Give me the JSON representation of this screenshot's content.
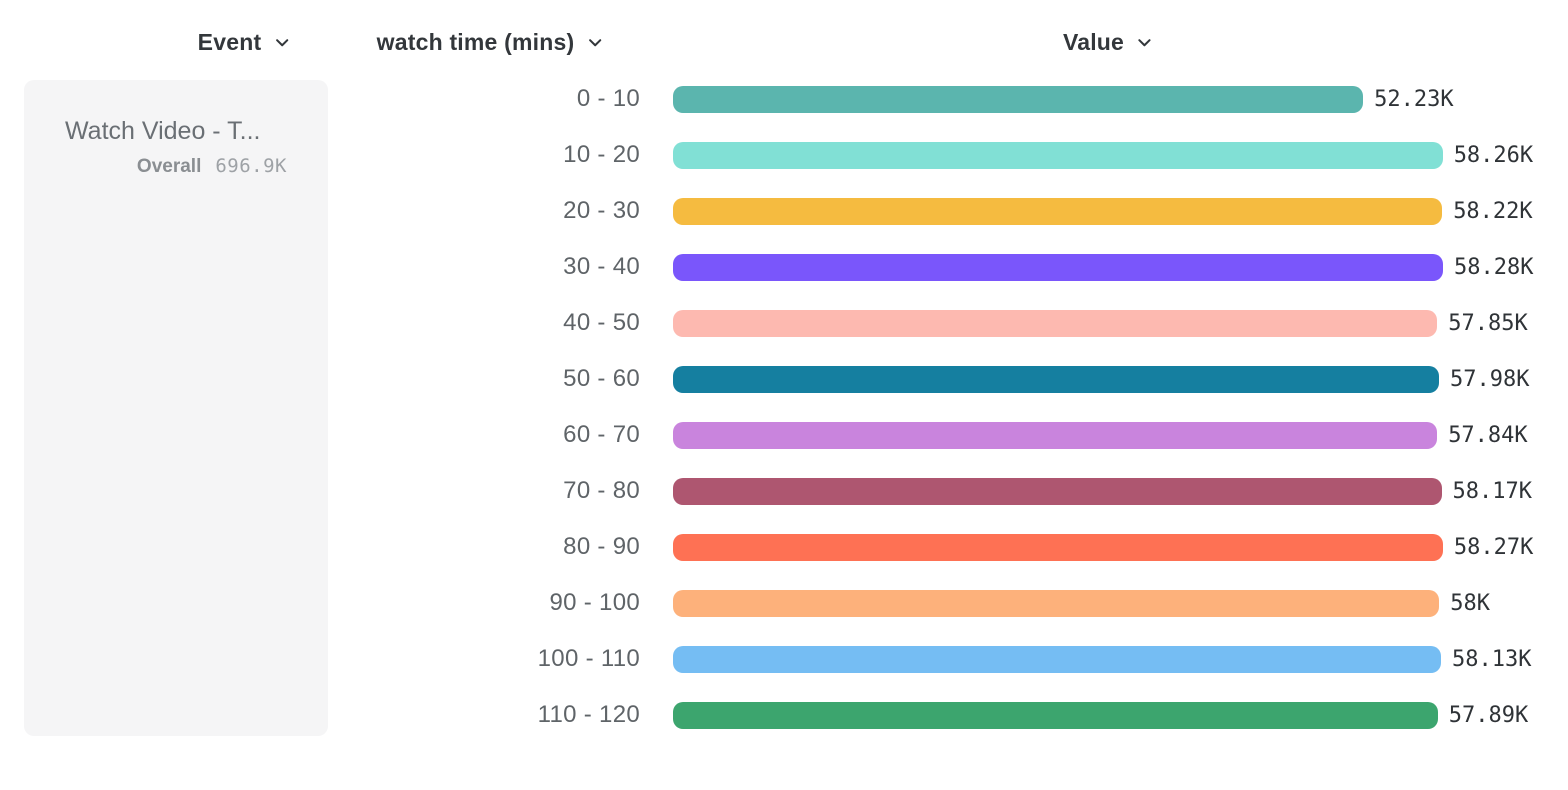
{
  "header": {
    "columns": [
      {
        "label": "Event"
      },
      {
        "label": "watch time (mins)"
      },
      {
        "label": "Value"
      }
    ]
  },
  "event_card": {
    "title": "Watch Video - T...",
    "overall_label": "Overall",
    "overall_value": "696.9K"
  },
  "chart_data": {
    "type": "bar",
    "orientation": "horizontal",
    "title": "",
    "xlabel": "Value",
    "ylabel": "watch time (mins)",
    "legend": false,
    "grid": false,
    "xlim": [
      0,
      58280
    ],
    "categories": [
      "0 - 10",
      "10 - 20",
      "20 - 30",
      "30 - 40",
      "40 - 50",
      "50 - 60",
      "60 - 70",
      "70 - 80",
      "80 - 90",
      "90 - 100",
      "100 - 110",
      "110 - 120"
    ],
    "values": [
      52230,
      58260,
      58220,
      58280,
      57850,
      57980,
      57840,
      58170,
      58270,
      58000,
      58130,
      57890
    ],
    "value_labels": [
      "52.23K",
      "58.26K",
      "58.22K",
      "58.28K",
      "57.85K",
      "57.98K",
      "57.84K",
      "58.17K",
      "58.27K",
      "58K",
      "58.13K",
      "57.89K"
    ],
    "bar_colors": [
      "#5bb5ae",
      "#81e0d5",
      "#f5bb40",
      "#7a56fb",
      "#fdb9b0",
      "#157fa0",
      "#c984dd",
      "#ae5670",
      "#fe7154",
      "#fdb17b",
      "#75bdf3",
      "#3ca56e"
    ],
    "series": [
      {
        "name": "Watch Video - T... (Overall)",
        "values": [
          52230,
          58260,
          58220,
          58280,
          57850,
          57980,
          57840,
          58170,
          58270,
          58000,
          58130,
          57890
        ]
      }
    ]
  },
  "colors": {
    "header_text": "#33373b",
    "row_label_text": "#5f6468",
    "value_text": "#2f3337",
    "card_background": "#f5f5f6",
    "card_title_text": "#6a6f74",
    "overall_label_text": "#8a8e92",
    "overall_value_text": "#9ea2a6"
  }
}
